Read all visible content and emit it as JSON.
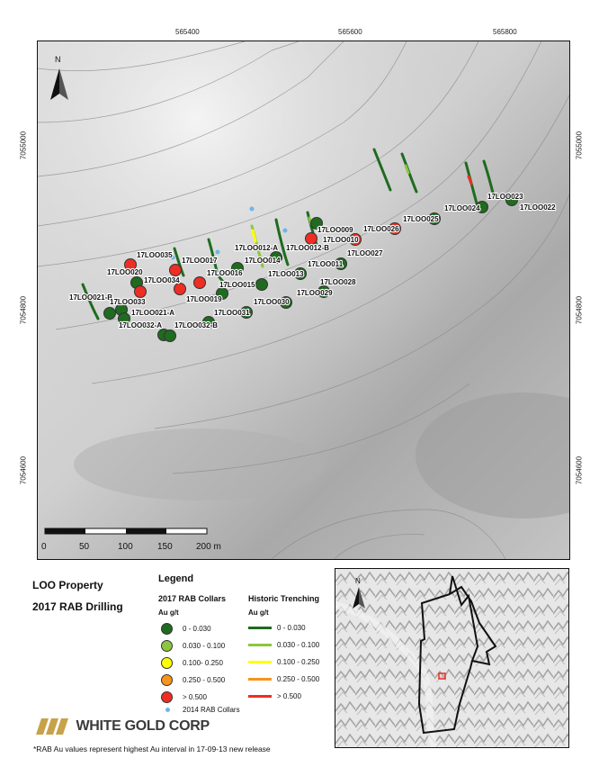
{
  "map": {
    "x_ticks": [
      "565400",
      "565600",
      "565800"
    ],
    "y_ticks": [
      "7055000",
      "7054800",
      "7054600"
    ],
    "north_label": "N",
    "scale_labels": [
      "0",
      "50",
      "100",
      "150",
      "200 m"
    ],
    "drill_labels": [
      "17LOO035",
      "17LOO020",
      "17LOO017",
      "17LOO016",
      "17LOO034",
      "17LOO015",
      "17LOO019",
      "17LOO021-B",
      "17LOO033",
      "17LOO021-A",
      "17LOO032-A",
      "17LOO032-B",
      "17LOO031",
      "17LOO030",
      "17LOO014",
      "17LOO013",
      "17LOO012-A",
      "17LOO012-B",
      "17LOO009",
      "17LOO010",
      "17LOO011",
      "17LOO029",
      "17LOO028",
      "17LOO027",
      "17LOO026",
      "17LOO025",
      "17LOO024",
      "17LOO023",
      "17LOO022"
    ]
  },
  "title": {
    "line1": "LOO Property",
    "line2": "2017 RAB Drilling"
  },
  "legend": {
    "heading": "Legend",
    "collars": {
      "title": "2017 RAB Collars",
      "unit": "Au g/t",
      "items": [
        {
          "label": "0 - 0.030",
          "color": "#1f6b1f"
        },
        {
          "label": "0.030 - 0.100",
          "color": "#8cc63f"
        },
        {
          "label": "0.100- 0.250",
          "color": "#ffff00"
        },
        {
          "label": "0.250 - 0.500",
          "color": "#f7941d"
        },
        {
          "label": "> 0.500",
          "color": "#ee2d24"
        }
      ],
      "rab2014": {
        "label": "2014 RAB Collars",
        "color": "#6fb5e8"
      }
    },
    "trenching": {
      "title": "Historic Trenching",
      "unit": "Au g/t",
      "items": [
        {
          "label": "0 - 0.030",
          "color": "#1f6b1f"
        },
        {
          "label": "0.030 - 0.100",
          "color": "#8cc63f"
        },
        {
          "label": "0.100 - 0.250",
          "color": "#ffff00"
        },
        {
          "label": "0.250 - 0.500",
          "color": "#f7941d"
        },
        {
          "label": "> 0.500",
          "color": "#ee2d24"
        }
      ]
    }
  },
  "logo": {
    "text": "WHITE GOLD CORP",
    "color": "#c8a24a"
  },
  "footnote": "*RAB Au values represent highest Au interval in 17-09-13 new release"
}
